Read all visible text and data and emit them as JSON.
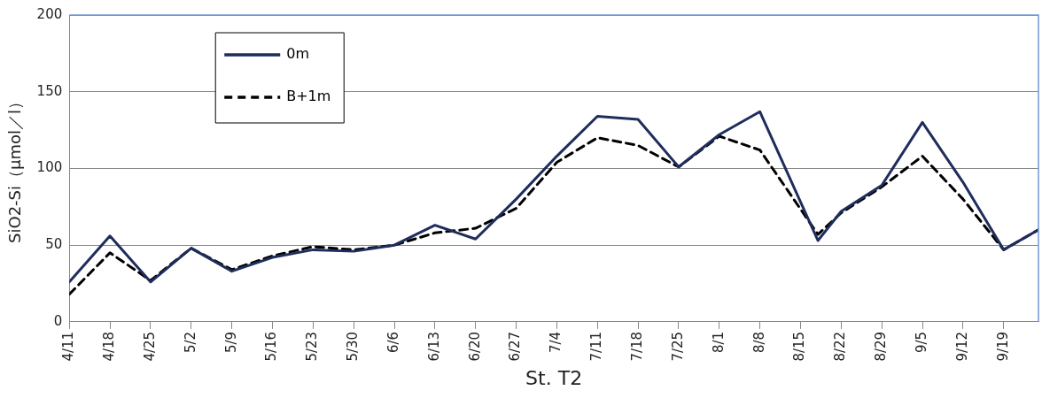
{
  "chart_data": {
    "type": "line",
    "xlabel": "St. T2",
    "ylabel": "SiO2-Si（μmol／l）",
    "x": [
      "--04-11",
      "--04-18",
      "--04-25",
      "--05-02",
      "--05-09",
      "--05-16",
      "--05-23",
      "--05-30",
      "--06-06",
      "--06-13",
      "--06-20",
      "--06-27",
      "--07-04",
      "--07-11",
      "--07-18",
      "--07-25",
      "--08-01",
      "--08-08",
      "--08-18",
      "--08-22",
      "--08-29",
      "--09-05",
      "--09-12",
      "--09-19",
      "--09-25"
    ],
    "series": [
      {
        "name": "0m",
        "color": "#1f2d5c",
        "line_style": "solid",
        "values": [
          26,
          56,
          26,
          48,
          33,
          42,
          47,
          46,
          50,
          63,
          54,
          80,
          108,
          134,
          132,
          101,
          122,
          137,
          53,
          72,
          89,
          130,
          91,
          47,
          60
        ]
      },
      {
        "name": "B+1m",
        "color": "#000000",
        "line_style": "dashed",
        "values": [
          18,
          45,
          27,
          48,
          34,
          43,
          49,
          47,
          50,
          58,
          61,
          74,
          104,
          120,
          115,
          101,
          121,
          112,
          57,
          71,
          88,
          108,
          80,
          47,
          60
        ]
      }
    ],
    "xlim": [
      "--04-11",
      "--09-25"
    ],
    "xticks": [
      {
        "value": "--04-11",
        "label": "4/11"
      },
      {
        "value": "--04-18",
        "label": "4/18"
      },
      {
        "value": "--04-25",
        "label": "4/25"
      },
      {
        "value": "--05-02",
        "label": "5/2"
      },
      {
        "value": "--05-09",
        "label": "5/9"
      },
      {
        "value": "--05-16",
        "label": "5/16"
      },
      {
        "value": "--05-23",
        "label": "5/23"
      },
      {
        "value": "--05-30",
        "label": "5/30"
      },
      {
        "value": "--06-06",
        "label": "6/6"
      },
      {
        "value": "--06-13",
        "label": "6/13"
      },
      {
        "value": "--06-20",
        "label": "6/20"
      },
      {
        "value": "--06-27",
        "label": "6/27"
      },
      {
        "value": "--07-04",
        "label": "7/4"
      },
      {
        "value": "--07-11",
        "label": "7/11"
      },
      {
        "value": "--07-18",
        "label": "7/18"
      },
      {
        "value": "--07-25",
        "label": "7/25"
      },
      {
        "value": "--08-01",
        "label": "8/1"
      },
      {
        "value": "--08-08",
        "label": "8/8"
      },
      {
        "value": "--08-15",
        "label": "8/15"
      },
      {
        "value": "--08-22",
        "label": "8/22"
      },
      {
        "value": "--08-29",
        "label": "8/29"
      },
      {
        "value": "--09-05",
        "label": "9/5"
      },
      {
        "value": "--09-12",
        "label": "9/12"
      },
      {
        "value": "--09-19",
        "label": "9/19"
      }
    ],
    "ylim": [
      0,
      200
    ],
    "yticks": [
      0,
      50,
      100,
      150,
      200
    ],
    "grid": "y",
    "legend": "top left",
    "marker": "none"
  }
}
